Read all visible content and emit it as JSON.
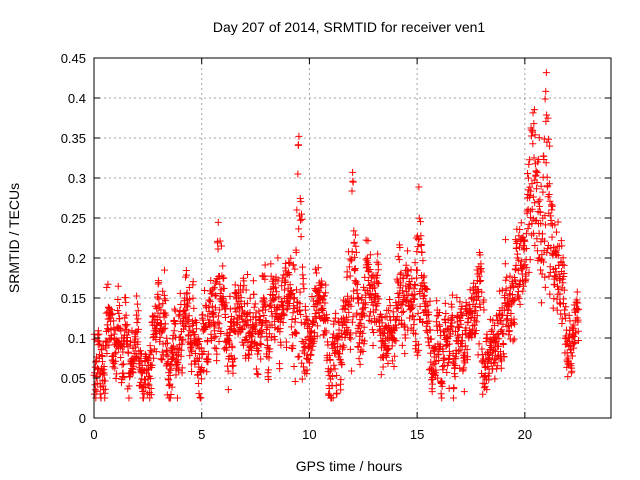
{
  "chart_data": {
    "type": "scatter",
    "title": "Day 207 of 2014, SRMTID for receiver ven1",
    "xlabel": "GPS time / hours",
    "ylabel": "SRMTID / TECUs",
    "xlim": [
      0,
      24
    ],
    "ylim": [
      0,
      0.45
    ],
    "x_ticks": [
      0,
      5,
      10,
      15,
      20
    ],
    "x_tick_labels": [
      "0",
      "5",
      "10",
      "15",
      "20"
    ],
    "y_ticks": [
      0,
      0.05,
      0.1,
      0.15,
      0.2,
      0.25,
      0.3,
      0.35,
      0.4,
      0.45
    ],
    "y_tick_labels": [
      "0",
      "0.05",
      "0.1",
      "0.15",
      "0.2",
      "0.25",
      "0.3",
      "0.35",
      "0.4",
      "0.45"
    ],
    "grid": true,
    "marker": "+",
    "marker_color": "#ff0000",
    "x_data_end": 22.5,
    "trend": [
      {
        "x": 0.0,
        "y": 0.08,
        "spread": 0.03
      },
      {
        "x": 1.0,
        "y": 0.09,
        "spread": 0.035
      },
      {
        "x": 2.0,
        "y": 0.075,
        "spread": 0.03
      },
      {
        "x": 3.0,
        "y": 0.09,
        "spread": 0.03
      },
      {
        "x": 4.0,
        "y": 0.085,
        "spread": 0.03
      },
      {
        "x": 4.5,
        "y": 0.08,
        "spread": 0.025
      },
      {
        "x": 5.0,
        "y": 0.11,
        "spread": 0.035
      },
      {
        "x": 6.0,
        "y": 0.125,
        "spread": 0.04
      },
      {
        "x": 7.0,
        "y": 0.12,
        "spread": 0.035
      },
      {
        "x": 8.0,
        "y": 0.12,
        "spread": 0.035
      },
      {
        "x": 9.0,
        "y": 0.135,
        "spread": 0.04
      },
      {
        "x": 10.0,
        "y": 0.12,
        "spread": 0.035
      },
      {
        "x": 11.0,
        "y": 0.11,
        "spread": 0.035
      },
      {
        "x": 12.0,
        "y": 0.13,
        "spread": 0.04
      },
      {
        "x": 13.0,
        "y": 0.115,
        "spread": 0.035
      },
      {
        "x": 14.0,
        "y": 0.12,
        "spread": 0.035
      },
      {
        "x": 15.0,
        "y": 0.13,
        "spread": 0.04
      },
      {
        "x": 16.0,
        "y": 0.1,
        "spread": 0.03
      },
      {
        "x": 17.0,
        "y": 0.095,
        "spread": 0.03
      },
      {
        "x": 18.0,
        "y": 0.12,
        "spread": 0.035
      },
      {
        "x": 18.7,
        "y": 0.09,
        "spread": 0.03
      },
      {
        "x": 19.3,
        "y": 0.16,
        "spread": 0.04
      },
      {
        "x": 20.0,
        "y": 0.2,
        "spread": 0.05
      },
      {
        "x": 20.6,
        "y": 0.25,
        "spread": 0.07
      },
      {
        "x": 21.2,
        "y": 0.22,
        "spread": 0.06
      },
      {
        "x": 21.8,
        "y": 0.15,
        "spread": 0.04
      },
      {
        "x": 22.5,
        "y": 0.1,
        "spread": 0.03
      }
    ],
    "bursts": [
      {
        "x": 5.8,
        "y_max": 0.27
      },
      {
        "x": 9.5,
        "y_max": 0.365
      },
      {
        "x": 12.0,
        "y_max": 0.32
      },
      {
        "x": 15.1,
        "y_max": 0.305
      },
      {
        "x": 17.9,
        "y_max": 0.235
      },
      {
        "x": 20.4,
        "y_max": 0.43
      },
      {
        "x": 21.0,
        "y_max": 0.435
      }
    ],
    "point_count": 2400,
    "random_seed": 207
  }
}
